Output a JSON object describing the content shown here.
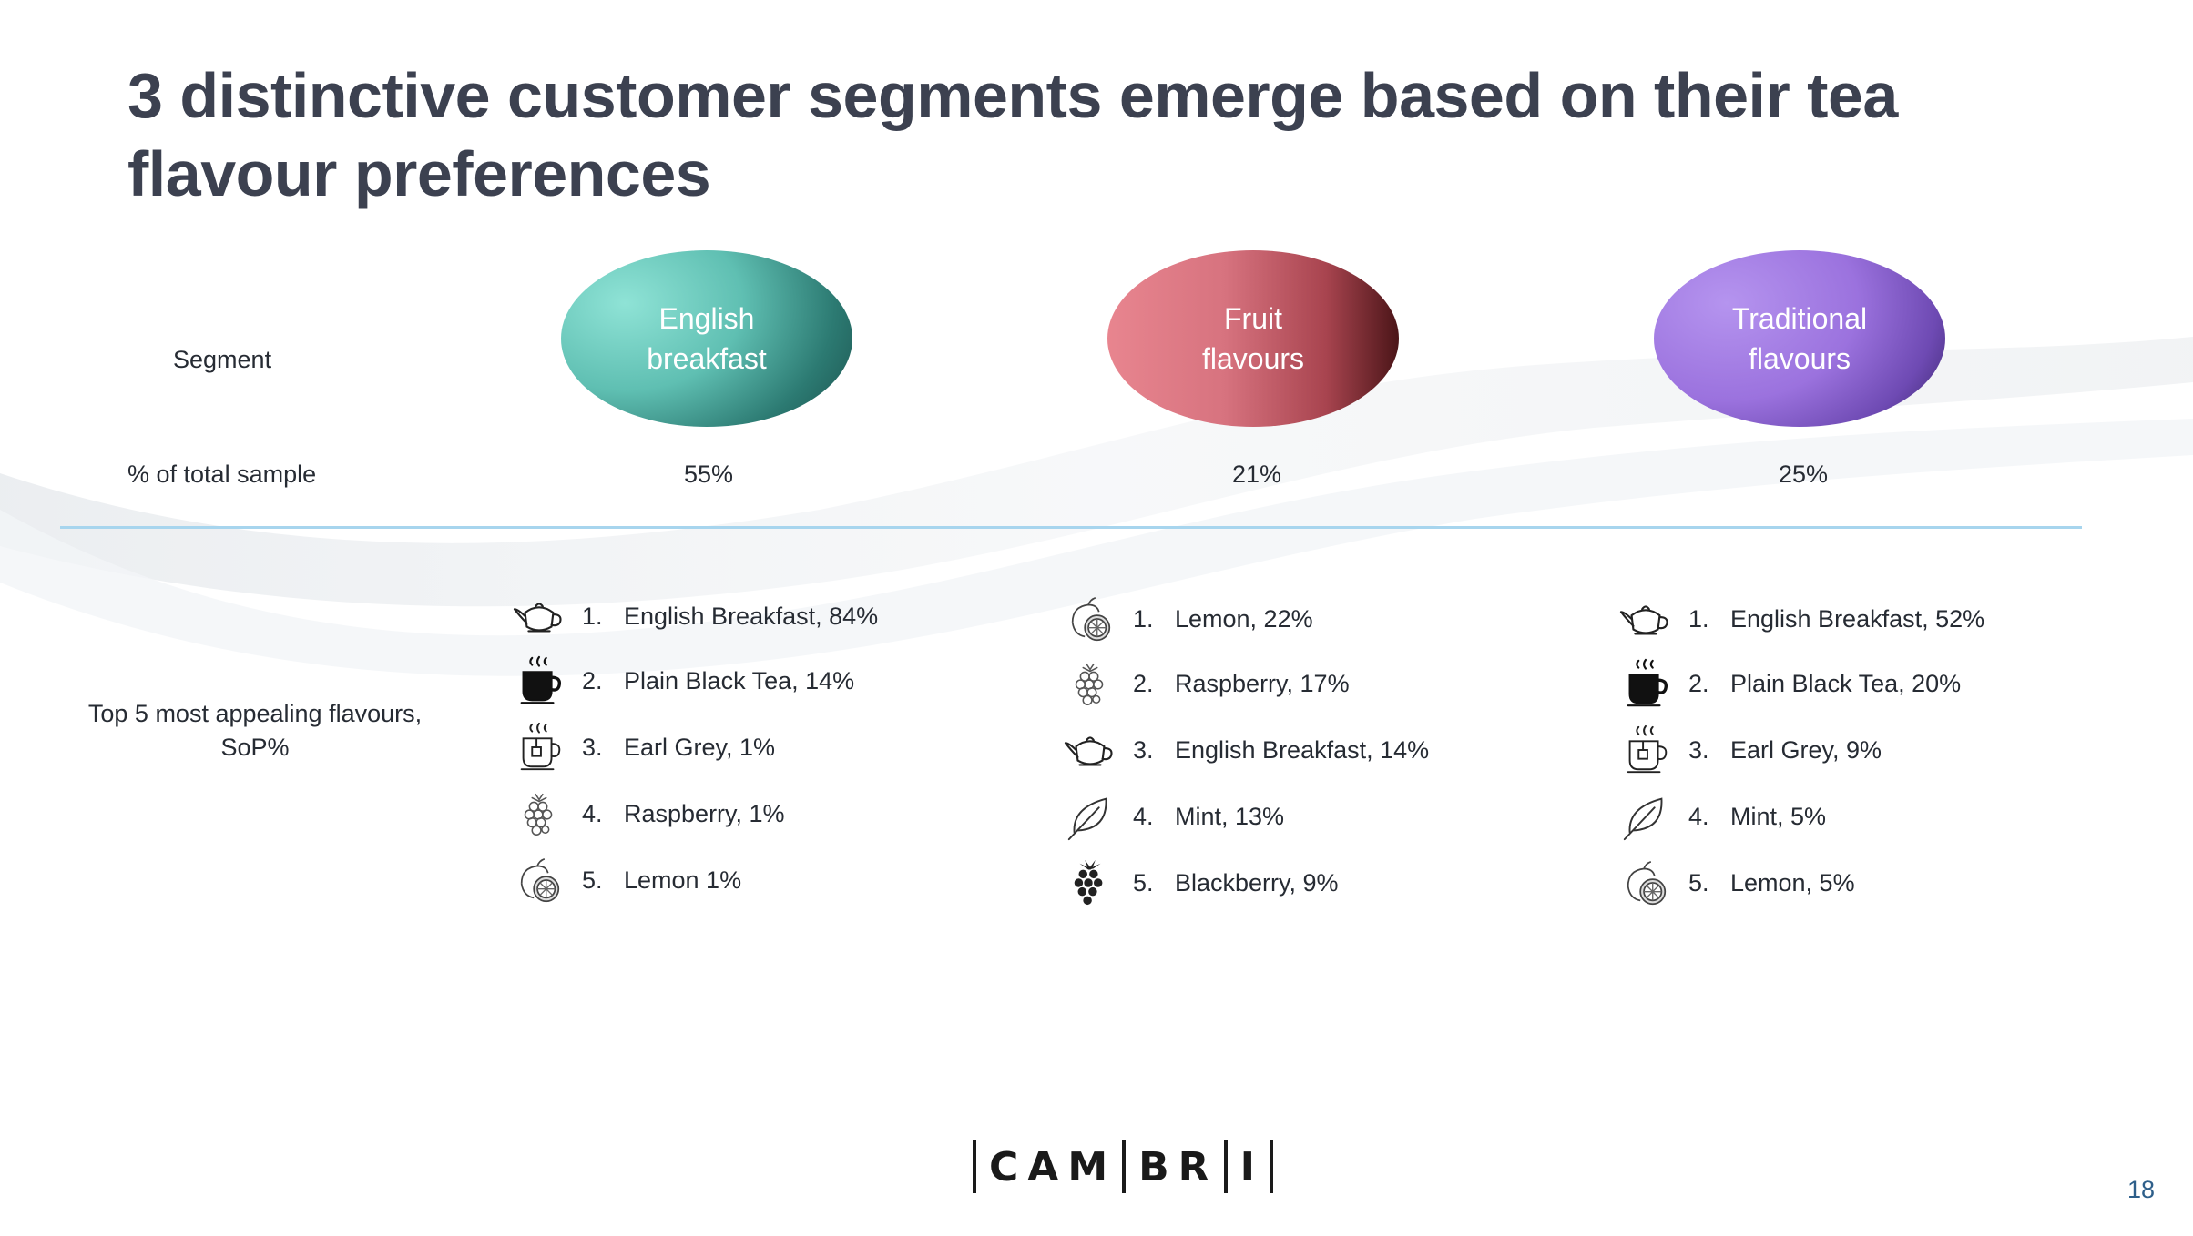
{
  "title": "3 distinctive customer segments emerge based on their tea flavour preferences",
  "row_labels": {
    "segment": "Segment",
    "pct_sample": "% of total sample",
    "top5": "Top 5 most appealing flavours, SoP%"
  },
  "segments": [
    {
      "name_line1": "English",
      "name_line2": "breakfast",
      "pct": "55%",
      "colors": [
        "#8fe3d6",
        "#1f5a55"
      ],
      "flavours": [
        {
          "num": "1.",
          "text": "English Breakfast, 84%",
          "icon": "teapot-icon"
        },
        {
          "num": "2.",
          "text": "Plain Black Tea, 14%",
          "icon": "black-tea-cup-icon"
        },
        {
          "num": "3.",
          "text": "Earl Grey, 1%",
          "icon": "tea-cup-icon"
        },
        {
          "num": "4.",
          "text": "Raspberry, 1%",
          "icon": "raspberry-icon"
        },
        {
          "num": "5.",
          "text": "Lemon 1%",
          "icon": "lemon-icon"
        }
      ]
    },
    {
      "name_line1": "Fruit",
      "name_line2": "flavours",
      "pct": "21%",
      "colors": [
        "#e8858f",
        "#4b1518"
      ],
      "flavours": [
        {
          "num": "1.",
          "text": "Lemon, 22%",
          "icon": "lemon-icon"
        },
        {
          "num": "2.",
          "text": "Raspberry, 17%",
          "icon": "raspberry-icon"
        },
        {
          "num": "3.",
          "text": "English Breakfast, 14%",
          "icon": "teapot-icon"
        },
        {
          "num": "4.",
          "text": "Mint, 13%",
          "icon": "mint-leaf-icon"
        },
        {
          "num": "5.",
          "text": "Blackberry, 9%",
          "icon": "blackberry-icon"
        }
      ]
    },
    {
      "name_line1": "Traditional",
      "name_line2": "flavours",
      "pct": "25%",
      "colors": [
        "#b594ef",
        "#3d2770"
      ],
      "flavours": [
        {
          "num": "1.",
          "text": "English Breakfast, 52%",
          "icon": "teapot-icon"
        },
        {
          "num": "2.",
          "text": "Plain Black Tea, 20%",
          "icon": "black-tea-cup-icon"
        },
        {
          "num": "3.",
          "text": "Earl Grey, 9%",
          "icon": "tea-cup-icon"
        },
        {
          "num": "4.",
          "text": "Mint, 5%",
          "icon": "mint-leaf-icon"
        },
        {
          "num": "5.",
          "text": "Lemon, 5%",
          "icon": "lemon-icon"
        }
      ]
    }
  ],
  "logo": {
    "part1": "CAM",
    "part2": "BR",
    "part3": "I"
  },
  "page_number": "18"
}
